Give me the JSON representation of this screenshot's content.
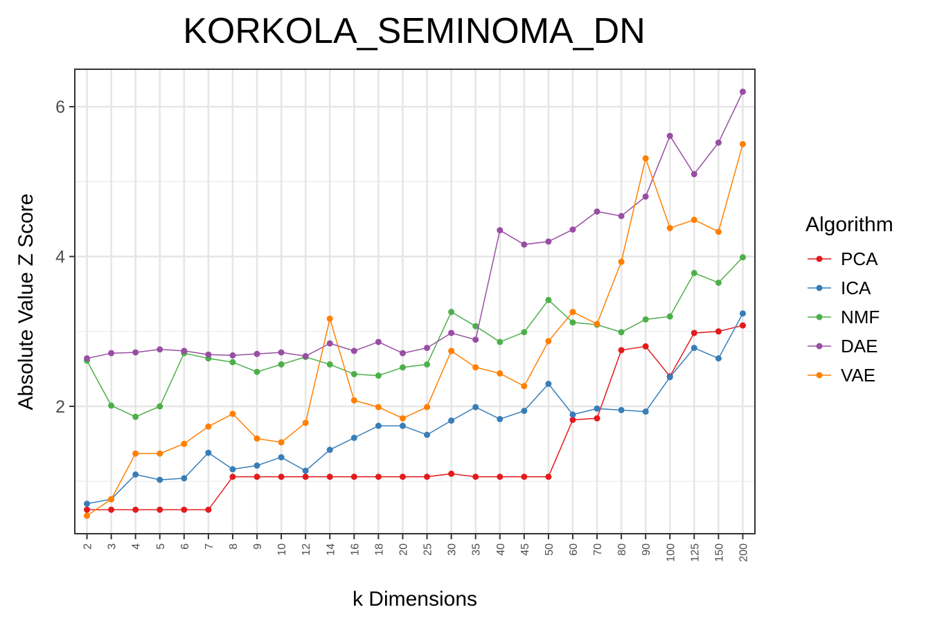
{
  "chart_data": {
    "type": "line",
    "title": "KORKOLA_SEMINOMA_DN",
    "xlabel": "k Dimensions",
    "ylabel": "Absolute Value Z Score",
    "categories": [
      "2",
      "3",
      "4",
      "5",
      "6",
      "7",
      "8",
      "9",
      "10",
      "12",
      "14",
      "16",
      "18",
      "20",
      "25",
      "30",
      "35",
      "40",
      "45",
      "50",
      "60",
      "70",
      "80",
      "90",
      "100",
      "125",
      "150",
      "200"
    ],
    "ylim": [
      0.3,
      6.5
    ],
    "yticks": [
      2,
      4,
      6
    ],
    "ytick_labels": [
      "2",
      "4",
      "6"
    ],
    "grid": true,
    "legend": {
      "title": "Algorithm",
      "position": "right"
    },
    "series": [
      {
        "name": "PCA",
        "color": "#e41a1c",
        "values": [
          0.62,
          0.62,
          0.62,
          0.62,
          0.62,
          0.62,
          1.06,
          1.06,
          1.06,
          1.06,
          1.06,
          1.06,
          1.06,
          1.06,
          1.06,
          1.1,
          1.06,
          1.06,
          1.06,
          1.06,
          1.82,
          1.84,
          2.75,
          2.8,
          2.4,
          2.98,
          3.0,
          3.08
        ]
      },
      {
        "name": "ICA",
        "color": "#377eb8",
        "values": [
          0.7,
          0.76,
          1.09,
          1.02,
          1.04,
          1.38,
          1.16,
          1.21,
          1.32,
          1.14,
          1.42,
          1.58,
          1.74,
          1.74,
          1.62,
          1.81,
          1.99,
          1.83,
          1.94,
          2.3,
          1.89,
          1.97,
          1.95,
          1.93,
          2.39,
          2.78,
          2.64,
          3.24
        ]
      },
      {
        "name": "NMF",
        "color": "#4daf4a",
        "values": [
          2.61,
          2.01,
          1.86,
          2.0,
          2.71,
          2.64,
          2.59,
          2.46,
          2.56,
          2.66,
          2.56,
          2.43,
          2.41,
          2.52,
          2.56,
          3.26,
          3.07,
          2.86,
          2.99,
          3.42,
          3.12,
          3.09,
          2.99,
          3.16,
          3.2,
          3.78,
          3.65,
          3.99
        ]
      },
      {
        "name": "DAE",
        "color": "#984ea3",
        "values": [
          2.64,
          2.71,
          2.72,
          2.76,
          2.74,
          2.69,
          2.68,
          2.7,
          2.72,
          2.67,
          2.84,
          2.74,
          2.86,
          2.71,
          2.78,
          2.98,
          2.89,
          4.35,
          4.16,
          4.2,
          4.36,
          4.6,
          4.54,
          4.8,
          5.61,
          5.1,
          5.52,
          6.2
        ]
      },
      {
        "name": "VAE",
        "color": "#ff7f00",
        "values": [
          0.54,
          0.76,
          1.37,
          1.37,
          1.5,
          1.73,
          1.9,
          1.57,
          1.52,
          1.78,
          3.17,
          2.08,
          1.99,
          1.84,
          1.99,
          2.74,
          2.52,
          2.44,
          2.27,
          2.87,
          3.26,
          3.1,
          3.93,
          5.31,
          4.38,
          4.49,
          4.33,
          5.5
        ]
      }
    ]
  }
}
